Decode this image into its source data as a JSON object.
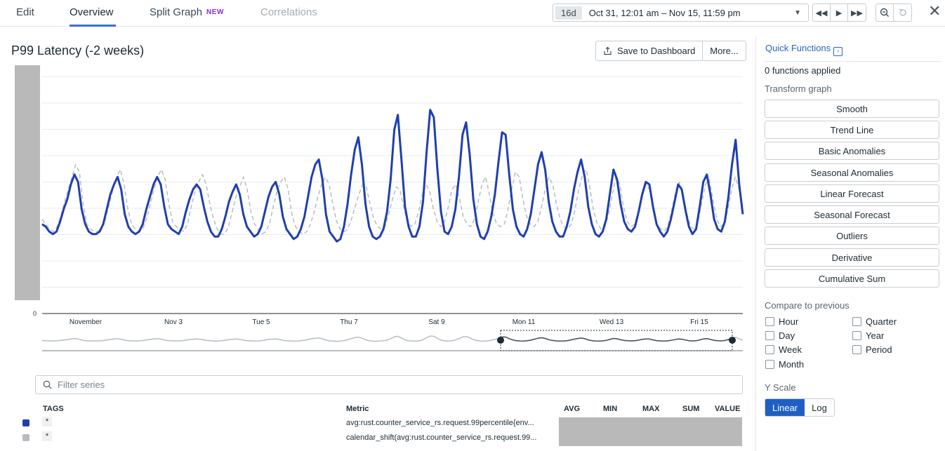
{
  "tabs": [
    {
      "label": "Edit"
    },
    {
      "label": "Overview"
    },
    {
      "label": "Split Graph",
      "badge": "NEW"
    },
    {
      "label": "Correlations"
    }
  ],
  "timepicker": {
    "span": "16d",
    "range": "Oct 31, 12:01 am – Nov 15, 11:59 pm"
  },
  "graph": {
    "title": "P99 Latency (-2 weeks)",
    "save_label": "Save to Dashboard",
    "more_label": "More..."
  },
  "filter": {
    "placeholder": "Filter series"
  },
  "legend": {
    "headers": {
      "tags": "TAGS",
      "metric": "Metric",
      "avg": "AVG",
      "min": "MIN",
      "max": "MAX",
      "sum": "SUM",
      "value": "VALUE"
    },
    "rows": [
      {
        "tag": "*",
        "metric": "avg:rust.counter_service_rs.request.99percentile{env...",
        "color": "#1f3fae"
      },
      {
        "tag": "*",
        "metric": "calendar_shift(avg:rust.counter_service_rs.request.99...",
        "color": "#b8bcc1"
      }
    ]
  },
  "panel": {
    "quick_functions": "Quick Functions",
    "applied": "0 functions applied",
    "transform_label": "Transform graph",
    "functions": [
      "Smooth",
      "Trend Line",
      "Basic Anomalies",
      "Seasonal Anomalies",
      "Linear Forecast",
      "Seasonal Forecast",
      "Outliers",
      "Derivative",
      "Cumulative Sum"
    ],
    "compare_label": "Compare to previous",
    "compare_left": [
      "Hour",
      "Day",
      "Week",
      "Month"
    ],
    "compare_right": [
      "Quarter",
      "Year",
      "Period"
    ],
    "yscale_label": "Y Scale",
    "yscale_options": [
      "Linear",
      "Log"
    ],
    "yscale_selected": "Linear"
  },
  "chart_data": {
    "type": "line",
    "title": "P99 Latency (-2 weeks)",
    "x_ticks": [
      "November",
      "Nov 3",
      "Tue 5",
      "Thu 7",
      "Sat 9",
      "Mon 11",
      "Wed 13",
      "Fri 15"
    ],
    "y_ticks": [
      "0"
    ],
    "grid": true,
    "series": [
      {
        "color": "#1f3fae",
        "values": [
          0.36,
          0.35,
          0.33,
          0.32,
          0.33,
          0.37,
          0.42,
          0.46,
          0.52,
          0.56,
          0.53,
          0.42,
          0.36,
          0.33,
          0.32,
          0.32,
          0.33,
          0.36,
          0.42,
          0.48,
          0.52,
          0.55,
          0.5,
          0.4,
          0.35,
          0.33,
          0.32,
          0.33,
          0.36,
          0.42,
          0.47,
          0.52,
          0.55,
          0.52,
          0.43,
          0.36,
          0.34,
          0.33,
          0.32,
          0.35,
          0.41,
          0.46,
          0.5,
          0.52,
          0.5,
          0.43,
          0.37,
          0.33,
          0.31,
          0.31,
          0.34,
          0.39,
          0.45,
          0.49,
          0.52,
          0.48,
          0.4,
          0.35,
          0.33,
          0.31,
          0.32,
          0.35,
          0.41,
          0.47,
          0.51,
          0.53,
          0.48,
          0.39,
          0.34,
          0.32,
          0.3,
          0.31,
          0.34,
          0.39,
          0.47,
          0.55,
          0.6,
          0.62,
          0.54,
          0.4,
          0.33,
          0.31,
          0.29,
          0.3,
          0.35,
          0.44,
          0.56,
          0.66,
          0.71,
          0.6,
          0.44,
          0.35,
          0.31,
          0.3,
          0.31,
          0.34,
          0.41,
          0.54,
          0.74,
          0.8,
          0.62,
          0.43,
          0.35,
          0.31,
          0.31,
          0.35,
          0.45,
          0.65,
          0.82,
          0.79,
          0.58,
          0.41,
          0.33,
          0.32,
          0.35,
          0.42,
          0.55,
          0.72,
          0.77,
          0.64,
          0.46,
          0.36,
          0.31,
          0.3,
          0.33,
          0.39,
          0.48,
          0.61,
          0.73,
          0.72,
          0.56,
          0.42,
          0.35,
          0.32,
          0.31,
          0.34,
          0.4,
          0.5,
          0.6,
          0.65,
          0.58,
          0.45,
          0.37,
          0.33,
          0.31,
          0.31,
          0.35,
          0.41,
          0.5,
          0.57,
          0.62,
          0.55,
          0.43,
          0.36,
          0.32,
          0.31,
          0.33,
          0.38,
          0.48,
          0.58,
          0.54,
          0.44,
          0.37,
          0.34,
          0.33,
          0.35,
          0.41,
          0.48,
          0.53,
          0.52,
          0.43,
          0.36,
          0.33,
          0.31,
          0.33,
          0.38,
          0.45,
          0.52,
          0.5,
          0.42,
          0.35,
          0.32,
          0.34,
          0.43,
          0.53,
          0.56,
          0.48,
          0.38,
          0.34,
          0.33,
          0.37,
          0.47,
          0.6,
          0.7,
          0.52,
          0.4
        ]
      },
      {
        "color": "#b8bcc1",
        "dashed": true,
        "values": [
          0.38,
          0.36,
          0.34,
          0.33,
          0.35,
          0.39,
          0.45,
          0.5,
          0.55,
          0.6,
          0.57,
          0.44,
          0.36,
          0.34,
          0.33,
          0.33,
          0.35,
          0.38,
          0.44,
          0.5,
          0.55,
          0.58,
          0.52,
          0.42,
          0.36,
          0.34,
          0.33,
          0.34,
          0.38,
          0.44,
          0.5,
          0.55,
          0.58,
          0.54,
          0.44,
          0.37,
          0.35,
          0.34,
          0.33,
          0.36,
          0.43,
          0.49,
          0.53,
          0.56,
          0.52,
          0.44,
          0.38,
          0.34,
          0.32,
          0.32,
          0.35,
          0.41,
          0.47,
          0.51,
          0.55,
          0.5,
          0.41,
          0.36,
          0.34,
          0.32,
          0.33,
          0.36,
          0.43,
          0.49,
          0.53,
          0.55,
          0.5,
          0.4,
          0.35,
          0.33,
          0.32,
          0.33,
          0.36,
          0.41,
          0.47,
          0.52,
          0.55,
          0.52,
          0.44,
          0.37,
          0.34,
          0.33,
          0.34,
          0.38,
          0.43,
          0.48,
          0.52,
          0.51,
          0.44,
          0.38,
          0.35,
          0.34,
          0.35,
          0.4,
          0.46,
          0.51,
          0.5,
          0.43,
          0.37,
          0.35,
          0.36,
          0.41,
          0.48,
          0.52,
          0.49,
          0.42,
          0.37,
          0.35,
          0.37,
          0.43,
          0.5,
          0.52,
          0.46,
          0.39,
          0.36,
          0.35,
          0.38,
          0.45,
          0.52,
          0.55,
          0.48,
          0.4,
          0.36,
          0.35,
          0.36,
          0.42,
          0.5,
          0.57,
          0.55,
          0.46,
          0.39,
          0.36,
          0.35,
          0.37,
          0.43,
          0.5,
          0.55,
          0.52,
          0.44,
          0.38,
          0.35,
          0.34,
          0.36,
          0.42,
          0.5,
          0.56,
          0.58,
          0.5,
          0.41,
          0.36,
          0.34,
          0.35,
          0.4,
          0.48,
          0.55,
          0.52,
          0.43,
          0.37,
          0.35,
          0.36,
          0.41,
          0.47,
          0.52,
          0.5,
          0.42,
          0.36,
          0.34,
          0.33,
          0.36,
          0.42,
          0.49,
          0.53,
          0.48,
          0.4,
          0.35,
          0.34,
          0.37,
          0.45,
          0.52,
          0.54,
          0.46,
          0.38,
          0.35,
          0.36,
          0.42,
          0.5,
          0.55,
          0.5,
          0.42
        ]
      }
    ]
  }
}
